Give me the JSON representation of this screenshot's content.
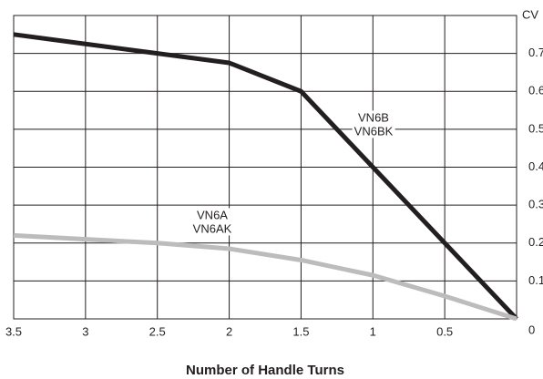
{
  "chart_data": {
    "type": "line",
    "x_label": "Number of Handle Turns",
    "y_label": "CV",
    "x": [
      3.5,
      3,
      2.5,
      2,
      1.5,
      1,
      0.5,
      0
    ],
    "xlim": [
      3.5,
      0
    ],
    "ylim": [
      0,
      0.8
    ],
    "xticks": [
      3.5,
      3,
      2.5,
      2,
      1.5,
      1,
      0.5
    ],
    "yticks": [
      0,
      0.1,
      0.2,
      0.3,
      0.4,
      0.5,
      0.6,
      0.7
    ],
    "grid": true,
    "series": [
      {
        "label_lines": [
          "VN6B",
          "VN6BK"
        ],
        "color": "#231f20",
        "values": [
          0.75,
          0.725,
          0.7,
          0.675,
          0.6,
          0.4,
          0.2,
          0
        ]
      },
      {
        "label_lines": [
          "VN6A",
          "VN6AK"
        ],
        "color": "#bcbcbc",
        "values": [
          0.22,
          0.21,
          0.2,
          0.185,
          0.155,
          0.115,
          0.06,
          0
        ]
      }
    ]
  }
}
